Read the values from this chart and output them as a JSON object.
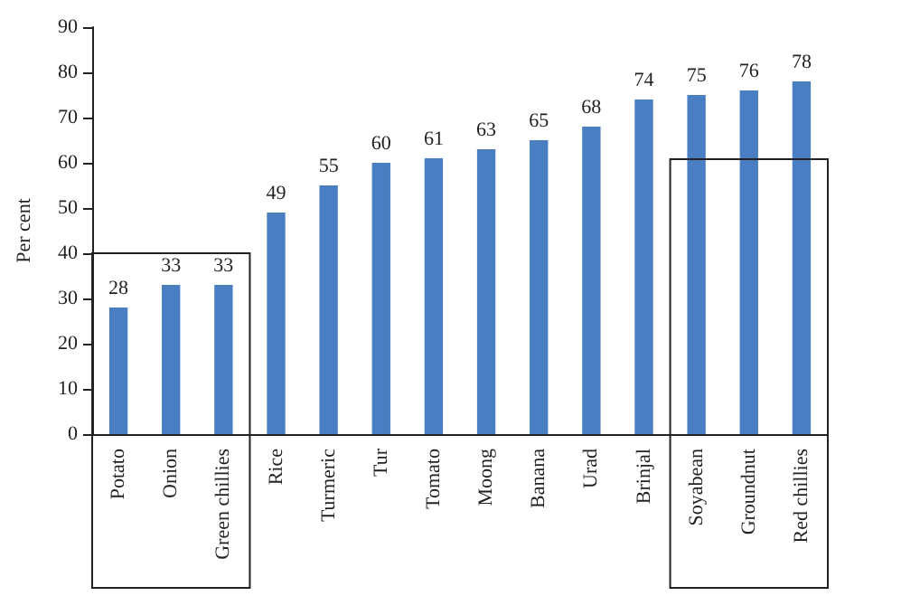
{
  "chart_data": {
    "type": "bar",
    "ylabel": "Per cent",
    "categories": [
      "Potato",
      "Onion",
      "Green chillies",
      "Rice",
      "Turmeric",
      "Tur",
      "Tomato",
      "Moong",
      "Banana",
      "Urad",
      "Brinjal",
      "Soyabean",
      "Groundnut",
      "Red chillies"
    ],
    "values": [
      28,
      33,
      33,
      49,
      55,
      60,
      61,
      63,
      65,
      68,
      74,
      75,
      76,
      78
    ],
    "color": "#4a7ec3",
    "ylim": [
      0,
      90
    ],
    "yticks": [
      0,
      10,
      20,
      30,
      40,
      50,
      60,
      70,
      80,
      90
    ],
    "data_labels": true
  }
}
